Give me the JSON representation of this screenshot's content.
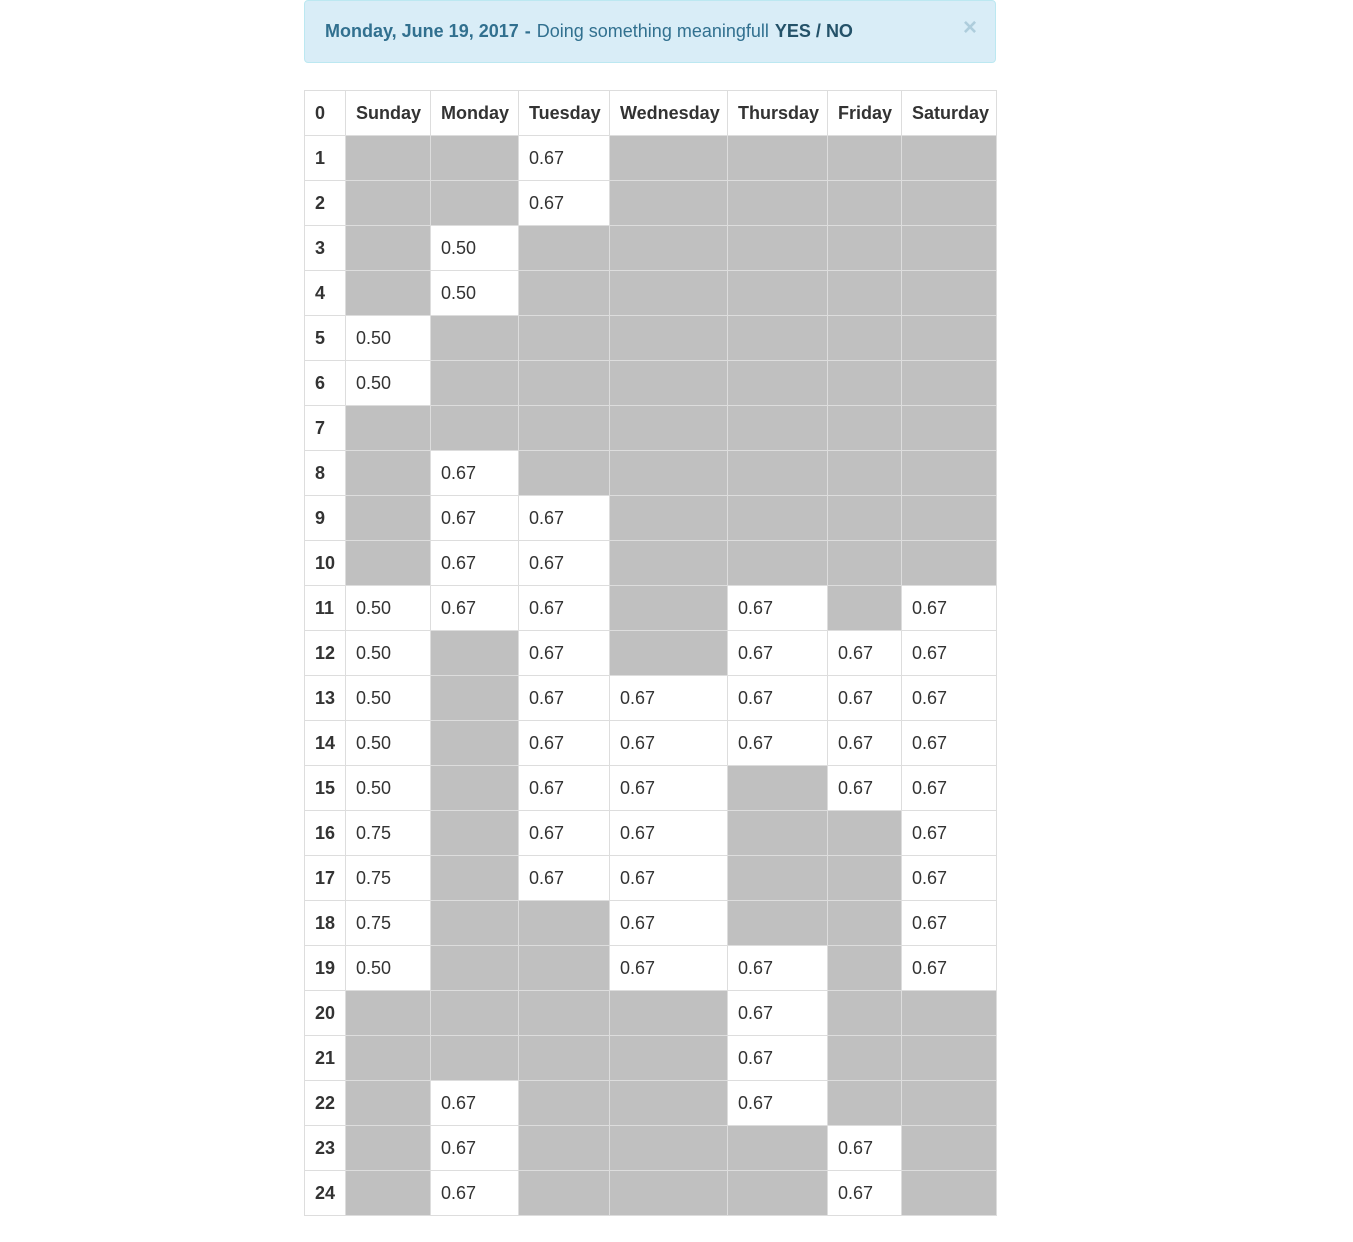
{
  "alert": {
    "date": "Monday, June 19, 2017",
    "separator": "-",
    "message": "Doing something meaningfull",
    "yes_label": "YES",
    "slash": "/",
    "no_label": "NO",
    "close_label": "×"
  },
  "grid": {
    "corner_label": "0",
    "days": [
      "Sunday",
      "Monday",
      "Tuesday",
      "Wednesday",
      "Thursday",
      "Friday",
      "Saturday"
    ],
    "rows": [
      {
        "hour": "1",
        "cells": [
          null,
          null,
          "0.67",
          null,
          null,
          null,
          null
        ]
      },
      {
        "hour": "2",
        "cells": [
          null,
          null,
          "0.67",
          null,
          null,
          null,
          null
        ]
      },
      {
        "hour": "3",
        "cells": [
          null,
          "0.50",
          null,
          null,
          null,
          null,
          null
        ]
      },
      {
        "hour": "4",
        "cells": [
          null,
          "0.50",
          null,
          null,
          null,
          null,
          null
        ]
      },
      {
        "hour": "5",
        "cells": [
          "0.50",
          null,
          null,
          null,
          null,
          null,
          null
        ]
      },
      {
        "hour": "6",
        "cells": [
          "0.50",
          null,
          null,
          null,
          null,
          null,
          null
        ]
      },
      {
        "hour": "7",
        "cells": [
          null,
          null,
          null,
          null,
          null,
          null,
          null
        ]
      },
      {
        "hour": "8",
        "cells": [
          null,
          "0.67",
          null,
          null,
          null,
          null,
          null
        ]
      },
      {
        "hour": "9",
        "cells": [
          null,
          "0.67",
          "0.67",
          null,
          null,
          null,
          null
        ]
      },
      {
        "hour": "10",
        "cells": [
          null,
          "0.67",
          "0.67",
          null,
          null,
          null,
          null
        ]
      },
      {
        "hour": "11",
        "cells": [
          "0.50",
          "0.67",
          "0.67",
          null,
          "0.67",
          null,
          "0.67"
        ]
      },
      {
        "hour": "12",
        "cells": [
          "0.50",
          null,
          "0.67",
          null,
          "0.67",
          "0.67",
          "0.67"
        ]
      },
      {
        "hour": "13",
        "cells": [
          "0.50",
          null,
          "0.67",
          "0.67",
          "0.67",
          "0.67",
          "0.67"
        ]
      },
      {
        "hour": "14",
        "cells": [
          "0.50",
          null,
          "0.67",
          "0.67",
          "0.67",
          "0.67",
          "0.67"
        ]
      },
      {
        "hour": "15",
        "cells": [
          "0.50",
          null,
          "0.67",
          "0.67",
          null,
          "0.67",
          "0.67"
        ]
      },
      {
        "hour": "16",
        "cells": [
          "0.75",
          null,
          "0.67",
          "0.67",
          null,
          null,
          "0.67"
        ]
      },
      {
        "hour": "17",
        "cells": [
          "0.75",
          null,
          "0.67",
          "0.67",
          null,
          null,
          "0.67"
        ]
      },
      {
        "hour": "18",
        "cells": [
          "0.75",
          null,
          null,
          "0.67",
          null,
          null,
          "0.67"
        ]
      },
      {
        "hour": "19",
        "cells": [
          "0.50",
          null,
          null,
          "0.67",
          "0.67",
          null,
          "0.67"
        ]
      },
      {
        "hour": "20",
        "cells": [
          null,
          null,
          null,
          null,
          "0.67",
          null,
          null
        ]
      },
      {
        "hour": "21",
        "cells": [
          null,
          null,
          null,
          null,
          "0.67",
          null,
          null
        ]
      },
      {
        "hour": "22",
        "cells": [
          null,
          "0.67",
          null,
          null,
          "0.67",
          null,
          null
        ]
      },
      {
        "hour": "23",
        "cells": [
          null,
          "0.67",
          null,
          null,
          null,
          "0.67",
          null
        ]
      },
      {
        "hour": "24",
        "cells": [
          null,
          "0.67",
          null,
          null,
          null,
          "0.67",
          null
        ]
      }
    ]
  },
  "colors": {
    "busy_cell": "#c0c0c0",
    "free_cell": "#ffffff",
    "alert_bg": "#d9edf7",
    "alert_text": "#31708f"
  }
}
